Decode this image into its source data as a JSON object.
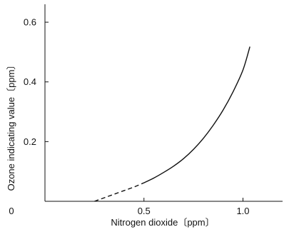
{
  "chart_data": {
    "type": "line",
    "title": "",
    "xlabel": "Nitrogen dioxide〔ppm〕",
    "ylabel": "Ozone indicating value〔ppm〕",
    "xlim": [
      0,
      1.2
    ],
    "ylim": [
      0,
      0.66
    ],
    "origin_label": "0",
    "x_ticks": [
      {
        "value": 0.5,
        "label": "0.5"
      },
      {
        "value": 1.0,
        "label": "1.0"
      }
    ],
    "y_ticks": [
      {
        "value": 0.2,
        "label": "0.2"
      },
      {
        "value": 0.4,
        "label": "0.4"
      },
      {
        "value": 0.6,
        "label": "0.6"
      }
    ],
    "grid": false,
    "legend": "none",
    "series": [
      {
        "style": "dashed",
        "x": [
          0.25,
          0.3,
          0.35,
          0.4,
          0.45,
          0.5
        ],
        "y": [
          0.0,
          0.012,
          0.024,
          0.036,
          0.048,
          0.062
        ]
      },
      {
        "style": "solid",
        "x": [
          0.5,
          0.55,
          0.6,
          0.65,
          0.7,
          0.75,
          0.8,
          0.85,
          0.9,
          0.95,
          1.0,
          1.035
        ],
        "y": [
          0.062,
          0.078,
          0.097,
          0.118,
          0.143,
          0.174,
          0.211,
          0.255,
          0.306,
          0.367,
          0.44,
          0.518
        ]
      }
    ],
    "colors": {
      "line": "#111111",
      "axis": "#111111",
      "background": "#ffffff"
    }
  }
}
